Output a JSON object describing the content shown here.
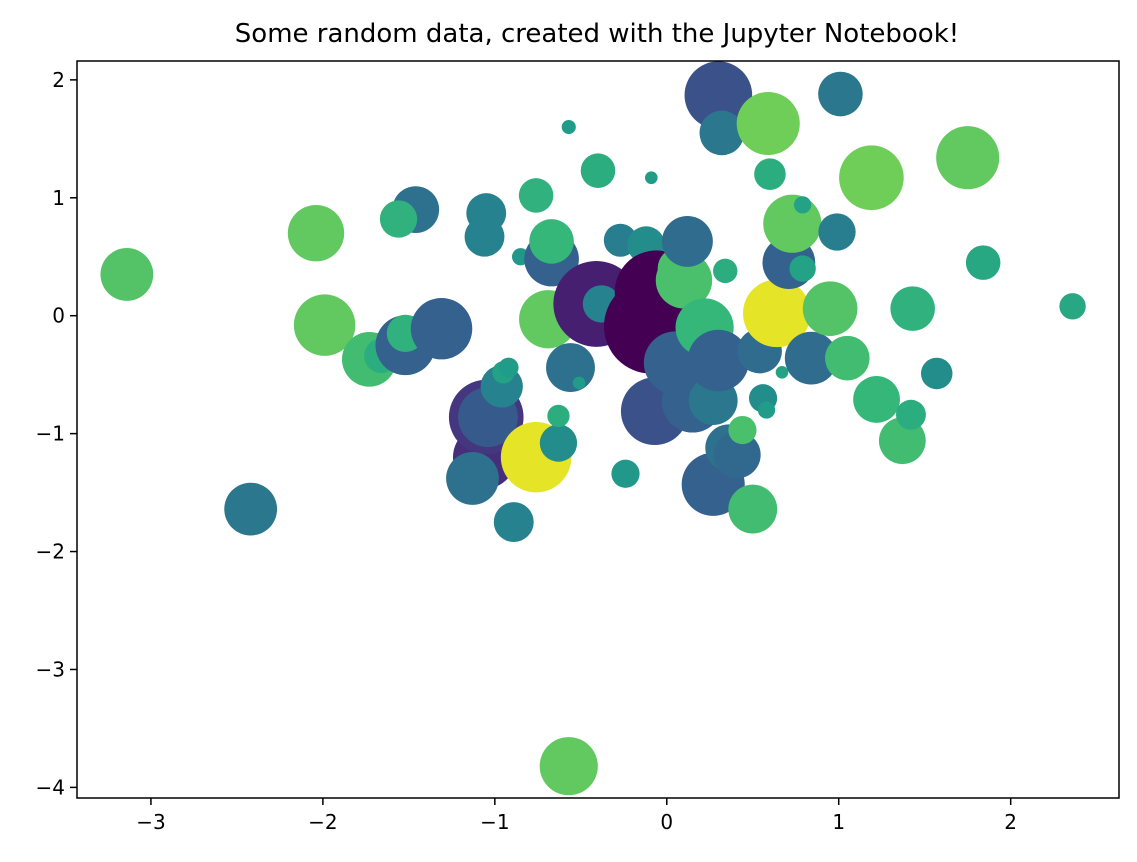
{
  "chart_data": {
    "type": "scatter",
    "title": "Some random data, created with the Jupyter Notebook!",
    "xlabel": "",
    "ylabel": "",
    "xlim": [
      -3.43,
      2.63
    ],
    "ylim": [
      -4.09,
      2.16
    ],
    "xticks": [
      -3,
      -2,
      -1,
      0,
      1,
      2
    ],
    "yticks": [
      -4,
      -3,
      -2,
      -1,
      0,
      1,
      2
    ],
    "xtick_labels": [
      "−3",
      "−2",
      "−1",
      "0",
      "1",
      "2"
    ],
    "ytick_labels": [
      "−4",
      "−3",
      "−2",
      "−1",
      "0",
      "1",
      "2"
    ],
    "grid": false,
    "colormap": "viridis",
    "color_note": "marker color value in [0,1] mapped through viridis; size value is marker area",
    "points": [
      {
        "x": -3.14,
        "y": 0.35,
        "size": 1400,
        "color": 0.82
      },
      {
        "x": -2.42,
        "y": -1.64,
        "size": 1400,
        "color": 0.45
      },
      {
        "x": -2.04,
        "y": 0.7,
        "size": 1600,
        "color": 0.85
      },
      {
        "x": -1.99,
        "y": -0.08,
        "size": 1900,
        "color": 0.85
      },
      {
        "x": -1.73,
        "y": -0.37,
        "size": 1500,
        "color": 0.78
      },
      {
        "x": -1.66,
        "y": -0.34,
        "size": 600,
        "color": 0.7
      },
      {
        "x": -1.52,
        "y": -0.25,
        "size": 1800,
        "color": 0.35
      },
      {
        "x": -1.52,
        "y": -0.15,
        "size": 700,
        "color": 0.72
      },
      {
        "x": -1.46,
        "y": 0.9,
        "size": 1100,
        "color": 0.42
      },
      {
        "x": -1.56,
        "y": 0.82,
        "size": 700,
        "color": 0.72
      },
      {
        "x": -1.31,
        "y": -0.11,
        "size": 1900,
        "color": 0.35
      },
      {
        "x": -1.05,
        "y": 0.87,
        "size": 800,
        "color": 0.5
      },
      {
        "x": -1.06,
        "y": 0.67,
        "size": 800,
        "color": 0.5
      },
      {
        "x": -1.06,
        "y": -1.2,
        "size": 2000,
        "color": 0.15
      },
      {
        "x": -1.05,
        "y": -0.86,
        "size": 2800,
        "color": 0.18
      },
      {
        "x": -1.04,
        "y": -0.86,
        "size": 1800,
        "color": 0.32
      },
      {
        "x": -1.13,
        "y": -1.38,
        "size": 1400,
        "color": 0.42
      },
      {
        "x": -0.96,
        "y": -0.6,
        "size": 900,
        "color": 0.5
      },
      {
        "x": -0.95,
        "y": -0.48,
        "size": 250,
        "color": 0.65
      },
      {
        "x": -0.92,
        "y": -0.44,
        "size": 200,
        "color": 0.62
      },
      {
        "x": -0.89,
        "y": -1.75,
        "size": 800,
        "color": 0.5
      },
      {
        "x": -0.85,
        "y": 0.5,
        "size": 150,
        "color": 0.6
      },
      {
        "x": -0.76,
        "y": -1.2,
        "size": 2500,
        "color": 0.98
      },
      {
        "x": -0.76,
        "y": 1.02,
        "size": 600,
        "color": 0.72
      },
      {
        "x": -0.69,
        "y": -0.03,
        "size": 1700,
        "color": 0.85
      },
      {
        "x": -0.67,
        "y": 0.48,
        "size": 1500,
        "color": 0.35
      },
      {
        "x": -0.67,
        "y": 0.63,
        "size": 1000,
        "color": 0.75
      },
      {
        "x": -0.63,
        "y": -1.08,
        "size": 700,
        "color": 0.55
      },
      {
        "x": -0.57,
        "y": 1.6,
        "size": 100,
        "color": 0.62
      },
      {
        "x": -0.56,
        "y": -0.44,
        "size": 1200,
        "color": 0.42
      },
      {
        "x": -0.57,
        "y": -3.82,
        "size": 1700,
        "color": 0.85
      },
      {
        "x": -0.63,
        "y": -0.85,
        "size": 250,
        "color": 0.7
      },
      {
        "x": -0.51,
        "y": -0.57,
        "size": 80,
        "color": 0.62
      },
      {
        "x": -0.4,
        "y": 1.23,
        "size": 600,
        "color": 0.7
      },
      {
        "x": -0.41,
        "y": 0.1,
        "size": 3700,
        "color": 0.1
      },
      {
        "x": -0.38,
        "y": 0.1,
        "size": 700,
        "color": 0.5
      },
      {
        "x": -0.27,
        "y": 0.64,
        "size": 550,
        "color": 0.48
      },
      {
        "x": -0.24,
        "y": -1.34,
        "size": 400,
        "color": 0.6
      },
      {
        "x": -0.12,
        "y": 0.6,
        "size": 700,
        "color": 0.55
      },
      {
        "x": -0.09,
        "y": 1.17,
        "size": 80,
        "color": 0.62
      },
      {
        "x": -0.06,
        "y": 0.2,
        "size": 3500,
        "color": 0.0
      },
      {
        "x": -0.09,
        "y": -0.09,
        "size": 4500,
        "color": 0.0
      },
      {
        "x": -0.07,
        "y": -0.81,
        "size": 2300,
        "color": 0.28
      },
      {
        "x": 0.05,
        "y": -0.4,
        "size": 2000,
        "color": 0.35
      },
      {
        "x": 0.07,
        "y": 0.4,
        "size": 900,
        "color": 0.8
      },
      {
        "x": 0.1,
        "y": 0.3,
        "size": 1600,
        "color": 0.8
      },
      {
        "x": 0.12,
        "y": 0.63,
        "size": 1300,
        "color": 0.4
      },
      {
        "x": 0.15,
        "y": -0.73,
        "size": 1900,
        "color": 0.35
      },
      {
        "x": 0.22,
        "y": -0.1,
        "size": 1700,
        "color": 0.75
      },
      {
        "x": 0.27,
        "y": -0.72,
        "size": 1200,
        "color": 0.45
      },
      {
        "x": 0.27,
        "y": -1.43,
        "size": 2000,
        "color": 0.35
      },
      {
        "x": 0.3,
        "y": 1.87,
        "size": 2300,
        "color": 0.28
      },
      {
        "x": 0.3,
        "y": -0.38,
        "size": 1900,
        "color": 0.35
      },
      {
        "x": 0.32,
        "y": 1.55,
        "size": 1000,
        "color": 0.45
      },
      {
        "x": 0.34,
        "y": 0.38,
        "size": 300,
        "color": 0.7
      },
      {
        "x": 0.36,
        "y": -1.12,
        "size": 1100,
        "color": 0.42
      },
      {
        "x": 0.41,
        "y": -1.18,
        "size": 1100,
        "color": 0.38
      },
      {
        "x": 0.44,
        "y": -0.97,
        "size": 400,
        "color": 0.8
      },
      {
        "x": 0.5,
        "y": -1.64,
        "size": 1200,
        "color": 0.78
      },
      {
        "x": 0.54,
        "y": -0.3,
        "size": 1000,
        "color": 0.4
      },
      {
        "x": 0.56,
        "y": -0.7,
        "size": 400,
        "color": 0.55
      },
      {
        "x": 0.58,
        "y": -0.8,
        "size": 150,
        "color": 0.62
      },
      {
        "x": 0.59,
        "y": 1.63,
        "size": 2000,
        "color": 0.88
      },
      {
        "x": 0.6,
        "y": 1.2,
        "size": 500,
        "color": 0.7
      },
      {
        "x": 0.64,
        "y": 0.02,
        "size": 2300,
        "color": 0.98
      },
      {
        "x": 0.67,
        "y": -0.48,
        "size": 80,
        "color": 0.65
      },
      {
        "x": 0.71,
        "y": 0.45,
        "size": 1400,
        "color": 0.35
      },
      {
        "x": 0.73,
        "y": 0.78,
        "size": 1700,
        "color": 0.85
      },
      {
        "x": 0.79,
        "y": 0.94,
        "size": 150,
        "color": 0.65
      },
      {
        "x": 0.79,
        "y": 0.4,
        "size": 350,
        "color": 0.65
      },
      {
        "x": 0.84,
        "y": -0.36,
        "size": 1400,
        "color": 0.4
      },
      {
        "x": 0.88,
        "y": 0.03,
        "size": 300,
        "color": 0.55
      },
      {
        "x": 0.95,
        "y": 0.06,
        "size": 1500,
        "color": 0.82
      },
      {
        "x": 0.99,
        "y": 0.71,
        "size": 700,
        "color": 0.48
      },
      {
        "x": 1.01,
        "y": 1.88,
        "size": 1000,
        "color": 0.45
      },
      {
        "x": 1.05,
        "y": -0.36,
        "size": 1000,
        "color": 0.78
      },
      {
        "x": 1.19,
        "y": 1.17,
        "size": 2100,
        "color": 0.88
      },
      {
        "x": 1.22,
        "y": -0.71,
        "size": 1100,
        "color": 0.75
      },
      {
        "x": 1.37,
        "y": -1.06,
        "size": 1100,
        "color": 0.78
      },
      {
        "x": 1.42,
        "y": -0.84,
        "size": 450,
        "color": 0.7
      },
      {
        "x": 1.43,
        "y": 0.06,
        "size": 1000,
        "color": 0.72
      },
      {
        "x": 1.57,
        "y": -0.49,
        "size": 500,
        "color": 0.55
      },
      {
        "x": 1.75,
        "y": 1.34,
        "size": 2000,
        "color": 0.85
      },
      {
        "x": 1.84,
        "y": 0.45,
        "size": 600,
        "color": 0.68
      },
      {
        "x": 2.36,
        "y": 0.08,
        "size": 350,
        "color": 0.68
      }
    ]
  }
}
